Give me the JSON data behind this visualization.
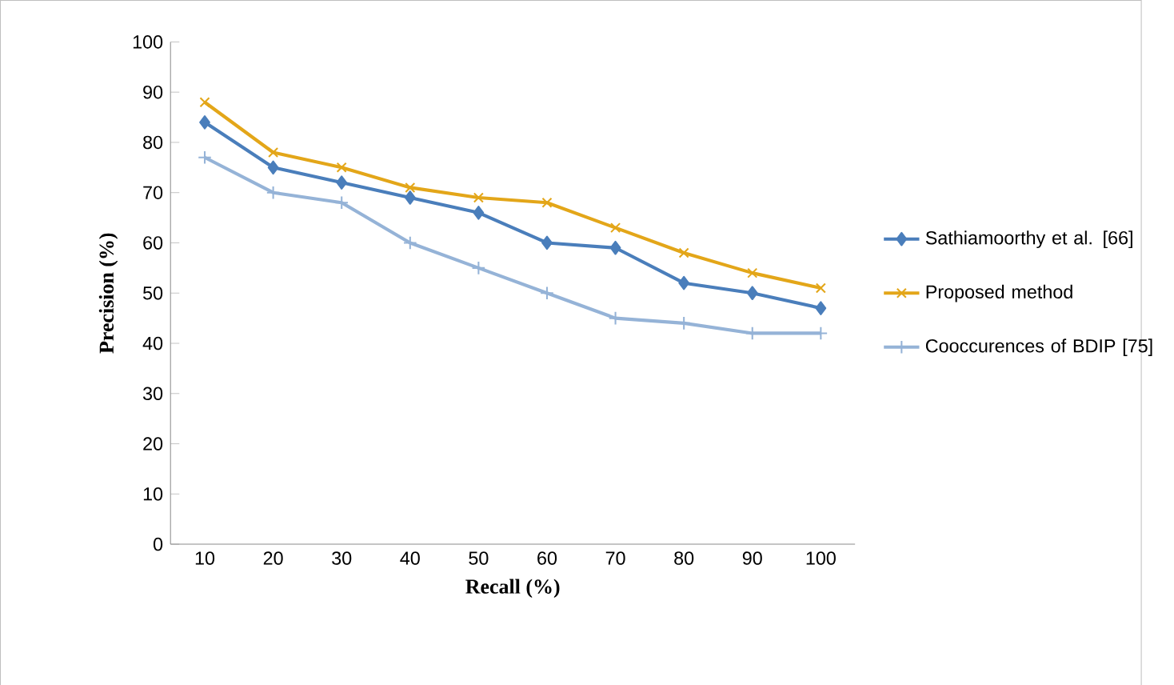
{
  "chart_data": {
    "type": "line",
    "xlabel": "Recall (%)",
    "ylabel": "Precision (%)",
    "categories": [
      "10",
      "20",
      "30",
      "40",
      "50",
      "60",
      "70",
      "80",
      "90",
      "100"
    ],
    "series": [
      {
        "name": "Sathiamoorthy  et al. [66]",
        "color": "#4a7ebb",
        "marker": "diamond",
        "values": [
          84,
          75,
          72,
          69,
          66,
          60,
          59,
          52,
          50,
          47
        ]
      },
      {
        "name": "Proposed method",
        "color": "#e3a619",
        "marker": "cross",
        "values": [
          88,
          78,
          75,
          71,
          69,
          68,
          63,
          58,
          54,
          51
        ]
      },
      {
        "name": "Cooccurences of BDIP [75]",
        "color": "#95b3d7",
        "marker": "plus",
        "values": [
          77,
          70,
          68,
          60,
          55,
          50,
          45,
          44,
          42,
          42
        ]
      }
    ],
    "ylim": [
      0,
      100
    ],
    "yticks": [
      0,
      10,
      20,
      30,
      40,
      50,
      60,
      70,
      80,
      90,
      100
    ],
    "grid": false,
    "legend": "right",
    "line_style": "solid"
  }
}
